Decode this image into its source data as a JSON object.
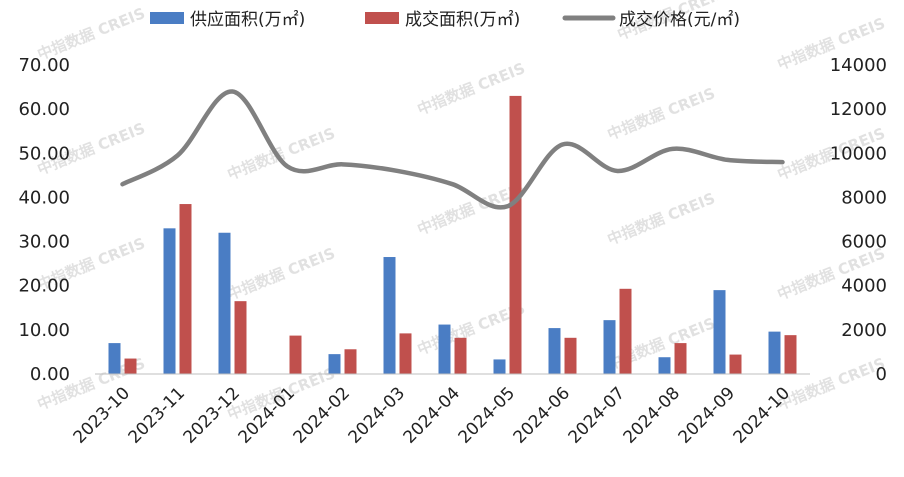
{
  "chart_data": {
    "type": "bar",
    "categories": [
      "2023-10",
      "2023-11",
      "2023-12",
      "2024-01",
      "2024-02",
      "2024-03",
      "2024-04",
      "2024-05",
      "2024-06",
      "2024-07",
      "2024-08",
      "2024-09",
      "2024-10"
    ],
    "series": [
      {
        "name": "供应面积(万㎡)",
        "kind": "bar",
        "axis": "left",
        "color": "#4a7dc4",
        "values": [
          7.0,
          33.0,
          32.0,
          0,
          4.5,
          26.5,
          11.2,
          3.3,
          10.4,
          12.2,
          3.8,
          19.0,
          9.6
        ]
      },
      {
        "name": "成交面积(万㎡)",
        "kind": "bar",
        "axis": "left",
        "color": "#c0504d",
        "values": [
          3.5,
          38.5,
          16.5,
          8.7,
          5.6,
          9.2,
          8.2,
          63.0,
          8.2,
          19.3,
          7.0,
          4.4,
          8.8
        ]
      },
      {
        "name": "成交价格(元/㎡)",
        "kind": "line",
        "axis": "right",
        "color": "#808080",
        "values": [
          8600,
          9900,
          12800,
          9400,
          9500,
          9200,
          8600,
          7600,
          10400,
          9200,
          10200,
          9700,
          9600
        ]
      }
    ],
    "y_left": {
      "ylim": [
        0,
        70
      ],
      "ticks": [
        "0.00",
        "10.00",
        "20.00",
        "30.00",
        "40.00",
        "50.00",
        "60.00",
        "70.00"
      ]
    },
    "y_right": {
      "ylim": [
        0,
        14000
      ],
      "ticks": [
        "0",
        "2000",
        "4000",
        "6000",
        "8000",
        "10000",
        "12000",
        "14000"
      ]
    },
    "legend_position": "top",
    "grid": false
  },
  "watermark": "中指数据 CREIS"
}
